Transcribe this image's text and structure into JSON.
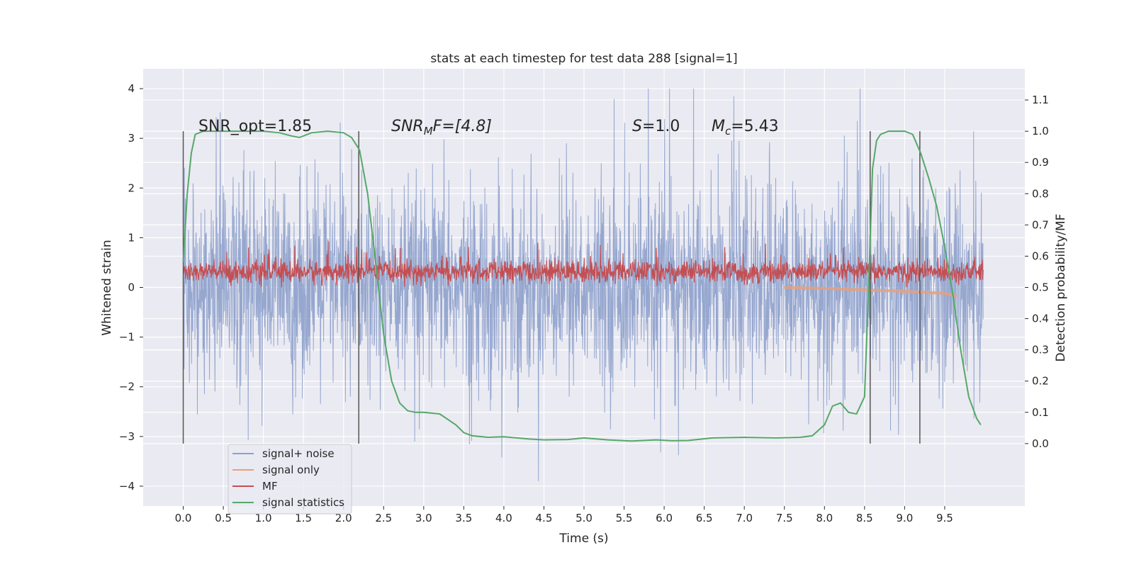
{
  "chart_data": {
    "type": "line",
    "title": "stats at each timestep for test data 288 [signal=1]",
    "xlabel": "Time (s)",
    "ylabel": "Whitened strain",
    "ylabel_right": "Detection probability/MF",
    "xlim": [
      -0.5,
      10.5
    ],
    "ylim": [
      -4.4,
      4.4
    ],
    "ylim_right": [
      -0.2,
      1.2
    ],
    "x_ticks": [
      "0.0",
      "0.5",
      "1.0",
      "1.5",
      "2.0",
      "2.5",
      "3.0",
      "3.5",
      "4.0",
      "4.5",
      "5.0",
      "5.5",
      "6.0",
      "6.5",
      "7.0",
      "7.5",
      "8.0",
      "8.5",
      "9.0",
      "9.5"
    ],
    "y_ticks": [
      "4",
      "3",
      "2",
      "1",
      "0",
      "−1",
      "−2",
      "−3",
      "−4"
    ],
    "y_right_ticks": [
      "1.1",
      "1.0",
      "0.9",
      "0.8",
      "0.7",
      "0.6",
      "0.5",
      "0.4",
      "0.3",
      "0.2",
      "0.1",
      "0.0"
    ],
    "annotations": {
      "snr_opt": "SNR_opt=1.85",
      "snr_mf_main": "SNR",
      "snr_mf_sub": "M",
      "snr_mf_rest": "F=[4.8]",
      "s_italic": "S",
      "s_rest": "=1.0",
      "mc_main": "M",
      "mc_sub": "c",
      "mc_rest": "=5.43"
    },
    "vertical_markers_s": [
      0.0,
      2.19,
      8.57,
      9.19
    ],
    "noise_amplitude_approx": 2.0,
    "mf_offset_right_axis": 0.55,
    "series": [
      {
        "name": "signal+ noise",
        "color": "#8da0cb",
        "axis": "left",
        "x_range": [
          0.0,
          9.98
        ],
        "description_values": "random whitened noise, range approx -3.9 to 4.0"
      },
      {
        "name": "signal only",
        "color": "#e8a07a",
        "axis": "left",
        "x": [
          7.5,
          8.0,
          8.5,
          9.0,
          9.5,
          9.65
        ],
        "y": [
          0.0,
          -0.02,
          -0.05,
          -0.08,
          -0.12,
          -0.18
        ]
      },
      {
        "name": "MF",
        "color": "#c44e52",
        "axis": "right",
        "x_range": [
          0.0,
          9.98
        ],
        "y_range_right": [
          0.5,
          0.62
        ]
      },
      {
        "name": "signal statistics",
        "color": "#55a868",
        "axis": "right",
        "x": [
          0.0,
          0.05,
          0.1,
          0.15,
          0.25,
          0.5,
          0.8,
          1.0,
          1.2,
          1.35,
          1.45,
          1.6,
          1.8,
          2.0,
          2.1,
          2.2,
          2.3,
          2.4,
          2.5,
          2.6,
          2.7,
          2.8,
          2.9,
          3.0,
          3.2,
          3.4,
          3.5,
          3.6,
          3.8,
          4.0,
          4.3,
          4.5,
          4.8,
          5.0,
          5.3,
          5.6,
          5.9,
          6.1,
          6.3,
          6.6,
          7.0,
          7.4,
          7.7,
          7.85,
          8.0,
          8.1,
          8.2,
          8.3,
          8.4,
          8.5,
          8.55,
          8.6,
          8.65,
          8.7,
          8.8,
          9.0,
          9.1,
          9.2,
          9.3,
          9.4,
          9.5,
          9.6,
          9.7,
          9.8,
          9.9,
          9.95
        ],
        "y": [
          0.58,
          0.8,
          0.93,
          0.99,
          1.0,
          1.0,
          1.0,
          1.0,
          0.995,
          0.985,
          0.98,
          0.995,
          1.0,
          0.995,
          0.98,
          0.94,
          0.8,
          0.58,
          0.35,
          0.2,
          0.13,
          0.105,
          0.1,
          0.1,
          0.095,
          0.06,
          0.035,
          0.025,
          0.02,
          0.022,
          0.015,
          0.012,
          0.013,
          0.018,
          0.012,
          0.008,
          0.012,
          0.009,
          0.01,
          0.018,
          0.02,
          0.018,
          0.02,
          0.025,
          0.06,
          0.12,
          0.13,
          0.1,
          0.095,
          0.15,
          0.5,
          0.88,
          0.97,
          0.99,
          1.0,
          1.0,
          0.99,
          0.93,
          0.85,
          0.76,
          0.63,
          0.48,
          0.3,
          0.15,
          0.08,
          0.06
        ]
      }
    ],
    "legend_position": "lower-left",
    "grid": true
  }
}
